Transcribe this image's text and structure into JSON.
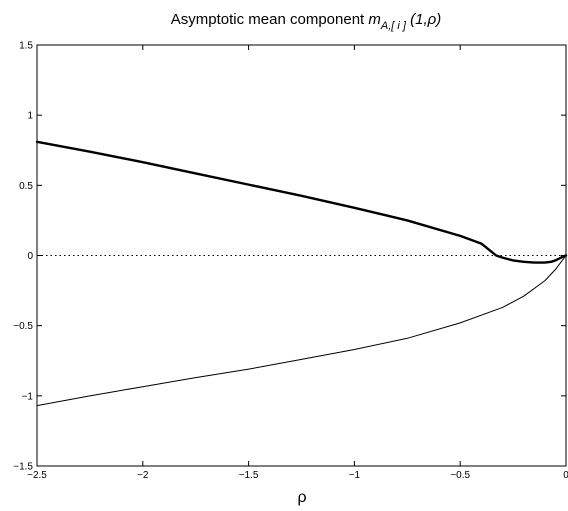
{
  "chart_data": {
    "type": "line",
    "title": {
      "main": "Asymptotic mean component ",
      "symbol": "m",
      "subscript": "A,[ i ]",
      "args": " (1,ρ)"
    },
    "xlabel": "ρ",
    "ylabel": "",
    "xlim": [
      -2.5,
      0
    ],
    "ylim": [
      -1.5,
      1.5
    ],
    "x_ticks": [
      -2.5,
      -2,
      -1.5,
      -1,
      -0.5,
      0
    ],
    "x_tick_labels": [
      "−2.5",
      "−2",
      "−1.5",
      "−1",
      "−0.5",
      "0"
    ],
    "y_ticks": [
      -1.5,
      -1,
      -0.5,
      0,
      0.5,
      1,
      1.5
    ],
    "y_tick_labels": [
      "−1.5",
      "−1",
      "−0.5",
      "0",
      "0.5",
      "1",
      "1.5"
    ],
    "grid": false,
    "reference_line": {
      "y": 0,
      "style": "dotted"
    },
    "series": [
      {
        "style": "thick",
        "x": [
          -2.5,
          -2.25,
          -2.0,
          -1.75,
          -1.5,
          -1.25,
          -1.0,
          -0.75,
          -0.5,
          -0.4,
          -0.33,
          -0.3,
          -0.25,
          -0.2,
          -0.15,
          -0.1,
          -0.07,
          -0.05,
          -0.03,
          -0.01,
          0
        ],
        "y": [
          0.81,
          0.74,
          0.665,
          0.585,
          0.505,
          0.425,
          0.34,
          0.25,
          0.14,
          0.085,
          0.0,
          -0.015,
          -0.035,
          -0.045,
          -0.05,
          -0.05,
          -0.045,
          -0.035,
          -0.02,
          -0.005,
          0
        ]
      },
      {
        "style": "thin",
        "x": [
          -2.5,
          -2.25,
          -2.0,
          -1.75,
          -1.5,
          -1.25,
          -1.0,
          -0.75,
          -0.5,
          -0.3,
          -0.2,
          -0.1,
          -0.05,
          -0.02,
          0
        ],
        "y": [
          -1.07,
          -1.0,
          -0.935,
          -0.87,
          -0.81,
          -0.74,
          -0.67,
          -0.59,
          -0.48,
          -0.37,
          -0.29,
          -0.18,
          -0.1,
          -0.04,
          0
        ]
      }
    ]
  }
}
